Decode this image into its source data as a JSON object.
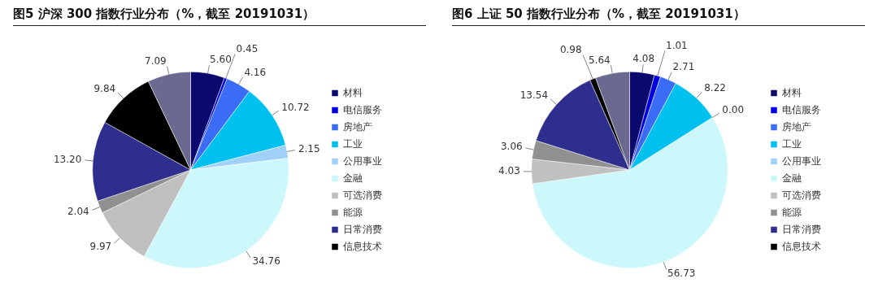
{
  "chart_data": [
    {
      "type": "pie",
      "title": "图5  沪深 300 指数行业分布（%，截至 20191031）",
      "categories": [
        "材料",
        "电信服务",
        "房地产",
        "工业",
        "公用事业",
        "金融",
        "可选消费",
        "能源",
        "日常消费",
        "信息技术",
        null
      ],
      "values": [
        5.6,
        0.45,
        4.16,
        10.72,
        2.15,
        34.76,
        9.97,
        2.04,
        13.2,
        9.84,
        7.09
      ],
      "value_labels": [
        "5.60",
        "0.45",
        "4.16",
        "10.72",
        "2.15",
        "34.76",
        "9.97",
        "2.04",
        "13.20",
        "9.84",
        "7.09"
      ],
      "colors": [
        "#0a0a6e",
        "#0000e0",
        "#3a6cf5",
        "#00c0f0",
        "#9fd0f8",
        "#ccf8fc",
        "#c0c0c0",
        "#909090",
        "#2e2e8e",
        "#000000",
        "#6a6a90"
      ],
      "legend": "right"
    },
    {
      "type": "pie",
      "title": "图6  上证 50 指数行业分布（%，截至 20191031）",
      "categories": [
        "材料",
        "电信服务",
        "房地产",
        "工业",
        "公用事业",
        "金融",
        "可选消费",
        "能源",
        "日常消费",
        "信息技术",
        null
      ],
      "values": [
        4.08,
        1.01,
        2.71,
        8.22,
        0.0,
        56.73,
        4.03,
        3.06,
        13.54,
        0.98,
        5.64
      ],
      "value_labels": [
        "4.08",
        "1.01",
        "2.71",
        "8.22",
        "0.00",
        "56.73",
        "4.03",
        "3.06",
        "13.54",
        "0.98",
        "5.64"
      ],
      "colors": [
        "#0a0a6e",
        "#0000e0",
        "#3a6cf5",
        "#00c0f0",
        "#9fd0f8",
        "#ccf8fc",
        "#c0c0c0",
        "#909090",
        "#2e2e8e",
        "#000000",
        "#6a6a90"
      ],
      "legend": "right"
    }
  ]
}
